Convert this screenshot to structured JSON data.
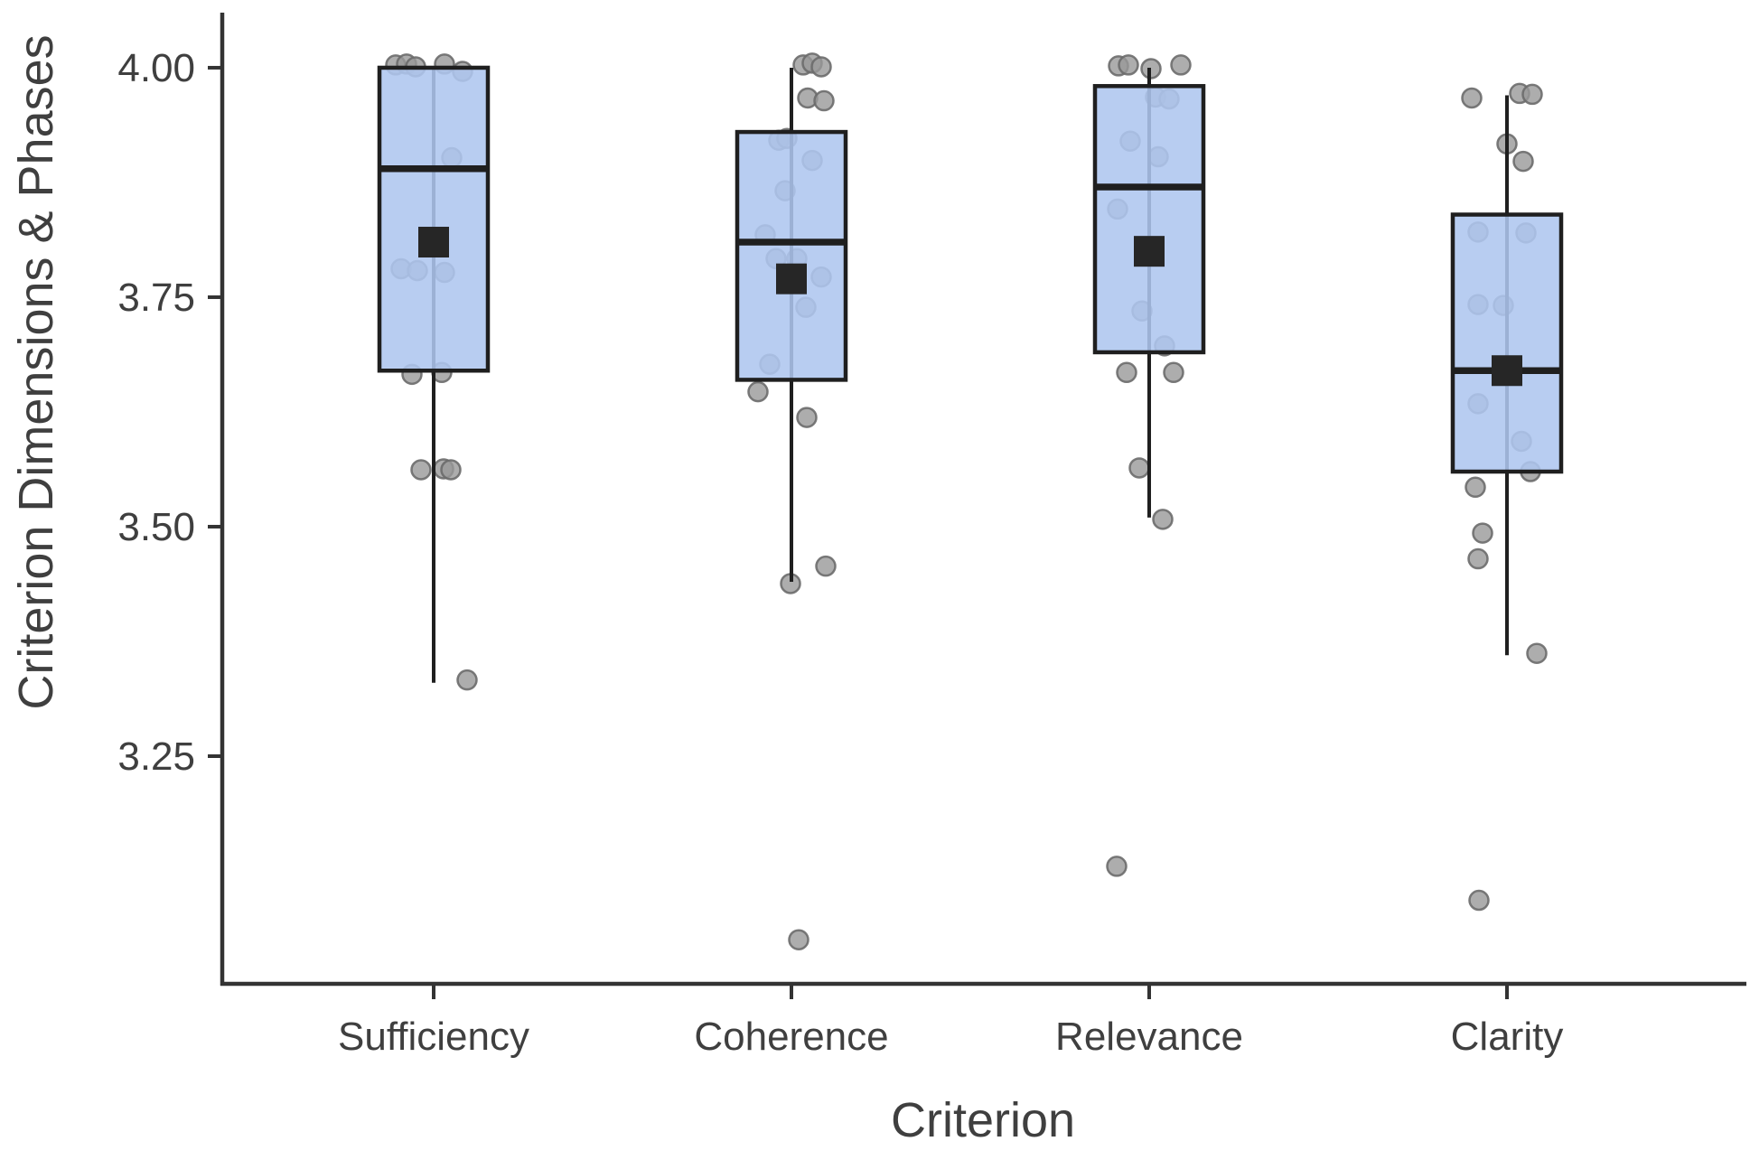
{
  "chart_data": {
    "type": "boxplot",
    "title": "",
    "xlabel": "Criterion",
    "ylabel": "Criterion Dimensions & Phases",
    "categories": [
      "Sufficiency",
      "Coherence",
      "Relevance",
      "Clarity"
    ],
    "y_axis": {
      "ticks": [
        4.0,
        3.75,
        3.5,
        3.25
      ],
      "tick_labels": [
        "4.00",
        "3.75",
        "3.50",
        "3.25"
      ],
      "range": [
        3.0,
        4.06
      ],
      "grid": false
    },
    "legend_position": "none",
    "boxes": [
      {
        "category": "Sufficiency",
        "q1": 3.67,
        "median": 3.89,
        "q3": 4.0,
        "whisker_low": 3.33,
        "whisker_high": 4.0,
        "mean": 3.81
      },
      {
        "category": "Coherence",
        "q1": 3.66,
        "median": 3.81,
        "q3": 3.93,
        "whisker_low": 3.44,
        "whisker_high": 4.0,
        "mean": 3.77
      },
      {
        "category": "Relevance",
        "q1": 3.69,
        "median": 3.87,
        "q3": 3.98,
        "whisker_low": 3.51,
        "whisker_high": 4.0,
        "mean": 3.8
      },
      {
        "category": "Clarity",
        "q1": 3.56,
        "median": 3.67,
        "q3": 3.84,
        "whisker_low": 3.36,
        "whisker_high": 3.97,
        "mean": 3.67
      }
    ],
    "jitter_points": {
      "Sufficiency": [
        [
          -42,
          4.003
        ],
        [
          -30,
          4.004
        ],
        [
          -20,
          4.001
        ],
        [
          12,
          4.004
        ],
        [
          32,
          3.996
        ],
        [
          20,
          3.902
        ],
        [
          -36,
          3.781
        ],
        [
          -18,
          3.779
        ],
        [
          12,
          3.777
        ],
        [
          -24,
          3.666
        ],
        [
          9,
          3.668
        ],
        [
          -14,
          3.562
        ],
        [
          11,
          3.563
        ],
        [
          19,
          3.562
        ],
        [
          37,
          3.333
        ]
      ],
      "Coherence": [
        [
          13,
          4.003
        ],
        [
          23,
          4.005
        ],
        [
          33,
          4.001
        ],
        [
          18,
          3.967
        ],
        [
          36,
          3.964
        ],
        [
          -14,
          3.921
        ],
        [
          -5,
          3.923
        ],
        [
          23,
          3.899
        ],
        [
          -7,
          3.866
        ],
        [
          -29,
          3.818
        ],
        [
          -17,
          3.792
        ],
        [
          6,
          3.792
        ],
        [
          33,
          3.772
        ],
        [
          16,
          3.739
        ],
        [
          -24,
          3.677
        ],
        [
          -37,
          3.647
        ],
        [
          17,
          3.619
        ],
        [
          38,
          3.457
        ],
        [
          -1,
          3.438
        ],
        [
          8,
          3.05
        ]
      ],
      "Relevance": [
        [
          -34,
          4.002
        ],
        [
          -23,
          4.003
        ],
        [
          2,
          3.999
        ],
        [
          35,
          4.003
        ],
        [
          7,
          3.968
        ],
        [
          22,
          3.966
        ],
        [
          -21,
          3.92
        ],
        [
          10,
          3.903
        ],
        [
          -35,
          3.846
        ],
        [
          -8,
          3.735
        ],
        [
          17,
          3.697
        ],
        [
          -25,
          3.668
        ],
        [
          27,
          3.668
        ],
        [
          -11,
          3.564
        ],
        [
          15,
          3.508
        ],
        [
          -36,
          3.13
        ]
      ],
      "Clarity": [
        [
          -39,
          3.967
        ],
        [
          14,
          3.972
        ],
        [
          28,
          3.971
        ],
        [
          0,
          3.917
        ],
        [
          18,
          3.898
        ],
        [
          -32,
          3.821
        ],
        [
          21,
          3.82
        ],
        [
          -32,
          3.742
        ],
        [
          -4,
          3.741
        ],
        [
          -32,
          3.634
        ],
        [
          16,
          3.593
        ],
        [
          26,
          3.56
        ],
        [
          -35,
          3.543
        ],
        [
          -27,
          3.493
        ],
        [
          -32,
          3.465
        ],
        [
          33,
          3.362
        ],
        [
          -31,
          3.093
        ]
      ]
    },
    "colors": {
      "box_fill": "#aec6ef",
      "box_border": "#1f1f1f",
      "median_line": "#1f1f1f",
      "mean_square": "#262626",
      "point_fill": "#999999",
      "point_stroke": "#6b6b6b",
      "axis_line": "#333333",
      "text": "#3f3f3f"
    }
  }
}
